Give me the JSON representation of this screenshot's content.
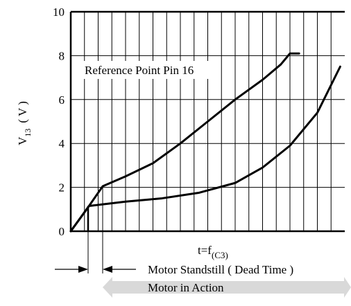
{
  "chart_data": {
    "type": "line",
    "title": "",
    "ylabel": "V13 (V)",
    "ylabel_main": "V",
    "ylabel_sub": "13",
    "ylabel_unit": "( V )",
    "xlabel_main": "t=f",
    "xlabel_sub": "(C3)",
    "ylim": [
      0,
      10
    ],
    "xlim": [
      0,
      30
    ],
    "yticks": [
      "0",
      "2",
      "4",
      "6",
      "8",
      "10"
    ],
    "ytick_values": [
      0,
      2,
      4,
      6,
      8,
      10
    ],
    "grid": true,
    "annotation": "Reference Point Pin 16",
    "series": [
      {
        "x": [
          0,
          2,
          3.5,
          6,
          9,
          12,
          15,
          18,
          21,
          23,
          24,
          25
        ],
        "y": [
          0,
          1.15,
          2.05,
          2.5,
          3.1,
          4.0,
          5.0,
          6.0,
          6.9,
          7.6,
          8.1,
          8.1
        ]
      },
      {
        "x": [
          0,
          2,
          6,
          10,
          14,
          18,
          21,
          24,
          27,
          29.5
        ],
        "y": [
          0,
          1.15,
          1.35,
          1.5,
          1.75,
          2.2,
          2.9,
          3.9,
          5.4,
          7.5
        ]
      }
    ],
    "dead_time_label": "Motor Standstill ( Dead Time )",
    "action_label": "Motor in Action",
    "arrow_color": "#d9d9d9"
  }
}
